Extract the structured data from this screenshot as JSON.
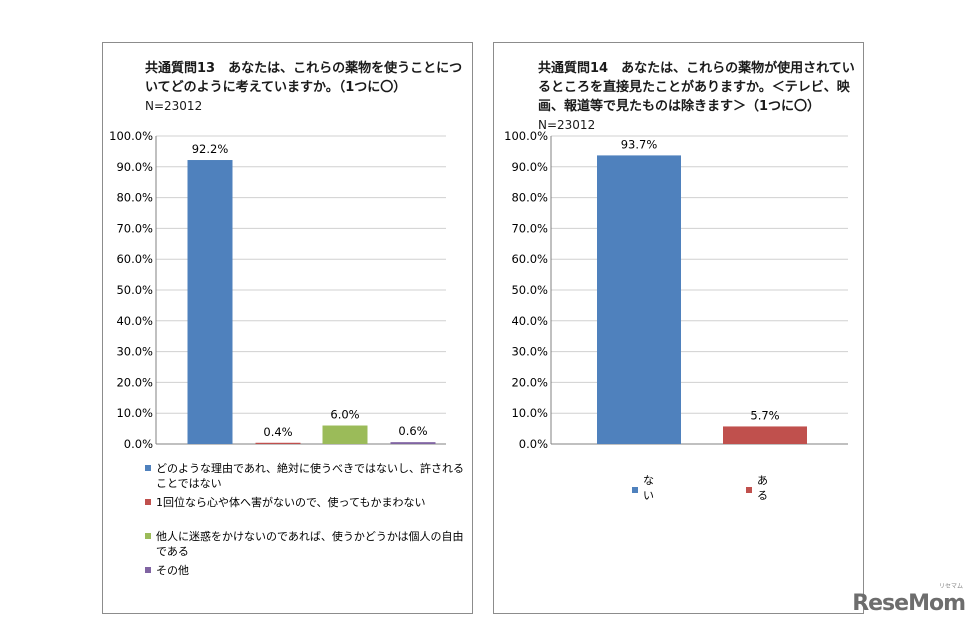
{
  "chart_data": [
    {
      "type": "bar",
      "title": "共通質問13　あなたは、これらの薬物を使うことについてどのように考えていますか。（1つに〇）",
      "note": "N=23012",
      "ylim": [
        0,
        100
      ],
      "yticks": [
        "0.0%",
        "10.0%",
        "20.0%",
        "30.0%",
        "40.0%",
        "50.0%",
        "60.0%",
        "70.0%",
        "80.0%",
        "90.0%",
        "100.0%"
      ],
      "series": [
        {
          "name": "どのような理由であれ、絶対に使うべきではないし、許されることではない",
          "value": 92.2,
          "label": "92.2%",
          "color": "#4F81BD"
        },
        {
          "name": "1回位なら心や体へ害がないので、使ってもかまわない",
          "value": 0.4,
          "label": "0.4%",
          "color": "#C0504D"
        },
        {
          "name": "他人に迷惑をかけないのであれば、使うかどうかは個人の自由である",
          "value": 6.0,
          "label": "6.0%",
          "color": "#9BBB59"
        },
        {
          "name": "その他",
          "value": 0.6,
          "label": "0.6%",
          "color": "#8064A2"
        }
      ],
      "legend_position": "bottom"
    },
    {
      "type": "bar",
      "title": "共通質問14　あなたは、これらの薬物が使用されているところを直接見たことがありますか。＜テレビ、映画、報道等で見たものは除きます＞（1つに〇）",
      "note": "N=23012",
      "ylim": [
        0,
        100
      ],
      "yticks": [
        "0.0%",
        "10.0%",
        "20.0%",
        "30.0%",
        "40.0%",
        "50.0%",
        "60.0%",
        "70.0%",
        "80.0%",
        "90.0%",
        "100.0%"
      ],
      "series": [
        {
          "name": "ない",
          "value": 93.7,
          "label": "93.7%",
          "color": "#4F81BD"
        },
        {
          "name": "ある",
          "value": 5.7,
          "label": "5.7%",
          "color": "#C0504D"
        }
      ],
      "legend_position": "bottom"
    }
  ],
  "watermark": "ReseMom",
  "watermark_small": "リセマム"
}
